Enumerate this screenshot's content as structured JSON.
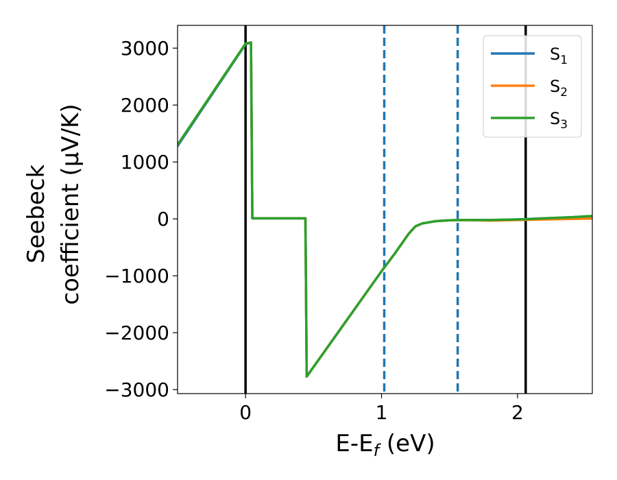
{
  "chart_data": {
    "type": "line",
    "title": "",
    "xlabel": "E-E_f (eV)",
    "xlabel_parts": {
      "main": "E-E",
      "sub": "f",
      "tail": " (eV)"
    },
    "ylabel": [
      "Seebeck",
      "coefficient  (μV/K)"
    ],
    "xlim": [
      -0.5,
      2.55
    ],
    "ylim": [
      -3070,
      3400
    ],
    "xticks": [
      0,
      1,
      2
    ],
    "xtick_labels": [
      "0",
      "1",
      "2"
    ],
    "yticks": [
      3000,
      2000,
      1000,
      0,
      -1000,
      -2000,
      -3000
    ],
    "ytick_labels": [
      "3000",
      "2000",
      "1000",
      "0",
      "−1000",
      "−2000",
      "−3000"
    ],
    "grid": false,
    "legend": {
      "position": "top-right",
      "entries": [
        {
          "label": "S",
          "sub": "1",
          "color": "#1f77b4"
        },
        {
          "label": "S",
          "sub": "2",
          "color": "#ff7f0e"
        },
        {
          "label": "S",
          "sub": "3",
          "color": "#2ca02c"
        }
      ]
    },
    "vlines": [
      {
        "x": 0.0,
        "style": "solid",
        "color": "#000000"
      },
      {
        "x": 2.06,
        "style": "solid",
        "color": "#000000"
      },
      {
        "x": 1.02,
        "style": "dashed",
        "color": "#1f77b4"
      },
      {
        "x": 1.56,
        "style": "dashed",
        "color": "#1f77b4"
      }
    ],
    "series": [
      {
        "name": "S_1",
        "color": "#1f77b4",
        "x": [
          -0.5,
          0.0,
          0.04,
          0.05,
          0.44,
          0.45,
          1.0,
          1.1,
          1.2,
          1.25,
          1.3,
          1.4,
          1.5,
          1.6,
          1.8,
          2.0,
          2.2,
          2.4,
          2.55
        ],
        "y": [
          1280,
          3070,
          3100,
          10,
          10,
          -2770,
          -920,
          -600,
          -260,
          -130,
          -80,
          -40,
          -25,
          -20,
          -20,
          -10,
          10,
          30,
          50
        ]
      },
      {
        "name": "S_2",
        "color": "#ff7f0e",
        "x": [
          -0.5,
          0.0,
          0.04,
          0.05,
          0.44,
          0.45,
          1.0,
          1.1,
          1.2,
          1.25,
          1.3,
          1.4,
          1.5,
          1.6,
          1.8,
          2.0,
          2.2,
          2.4,
          2.55
        ],
        "y": [
          1300,
          3080,
          3100,
          10,
          10,
          -2770,
          -920,
          -600,
          -260,
          -130,
          -80,
          -40,
          -25,
          -20,
          -30,
          -20,
          -10,
          0,
          5
        ]
      },
      {
        "name": "S_3",
        "color": "#2ca02c",
        "x": [
          -0.5,
          0.0,
          0.04,
          0.05,
          0.44,
          0.45,
          1.0,
          1.1,
          1.2,
          1.25,
          1.3,
          1.4,
          1.5,
          1.6,
          1.8,
          2.0,
          2.2,
          2.4,
          2.55
        ],
        "y": [
          1300,
          3080,
          3100,
          10,
          10,
          -2770,
          -920,
          -600,
          -260,
          -130,
          -80,
          -40,
          -25,
          -20,
          -20,
          -10,
          10,
          30,
          50
        ]
      }
    ]
  }
}
